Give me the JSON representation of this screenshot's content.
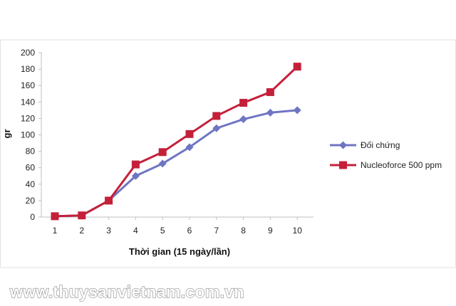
{
  "chart_data": {
    "type": "line",
    "x": [
      1,
      2,
      3,
      4,
      5,
      6,
      7,
      8,
      9,
      10
    ],
    "series": [
      {
        "name": "Đối chứng",
        "color": "#6f75c2",
        "marker": "diamond",
        "values": [
          1,
          2,
          20,
          50,
          65,
          85,
          108,
          119,
          127,
          130
        ]
      },
      {
        "name": "Nucleoforce 500 ppm",
        "color": "#c4203a",
        "marker": "square",
        "values": [
          1,
          2,
          20,
          64,
          79,
          101,
          123,
          139,
          152,
          183
        ]
      }
    ],
    "xlabel": "Thời gian (15 ngày/lần)",
    "ylabel": "gr",
    "xlim": [
      1,
      10
    ],
    "ylim": [
      0,
      200
    ],
    "yticks": [
      0,
      20,
      40,
      60,
      80,
      100,
      120,
      140,
      160,
      180,
      200
    ],
    "grid": false,
    "legend": "right"
  },
  "watermark": "www.thuysanvietnam.com.vn",
  "colors": {
    "axis": "#bfbfbf",
    "panel_border": "#d9d9d9"
  }
}
